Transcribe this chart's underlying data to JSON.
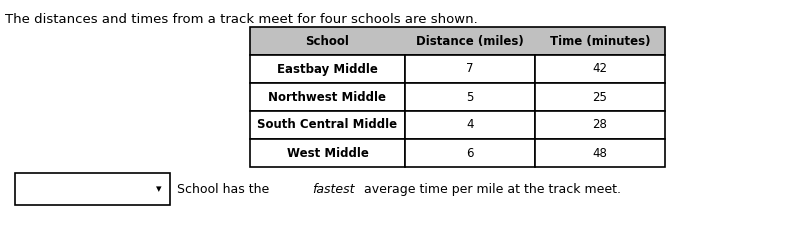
{
  "intro_text": "The distances and times from a track meet for four schools are shown.",
  "table_headers": [
    "School",
    "Distance (miles)",
    "Time (minutes)"
  ],
  "table_rows": [
    [
      "Eastbay Middle",
      "7",
      "42"
    ],
    [
      "Northwest Middle",
      "5",
      "25"
    ],
    [
      "South Central Middle",
      "4",
      "28"
    ],
    [
      "West Middle",
      "6",
      "48"
    ]
  ],
  "header_bg": "#c0c0c0",
  "dropdown_text": "School has the ",
  "dropdown_italic": "fastest",
  "dropdown_rest": " average time per mile at the track meet.",
  "fig_width": 8.0,
  "fig_height": 2.45,
  "dpi": 100
}
